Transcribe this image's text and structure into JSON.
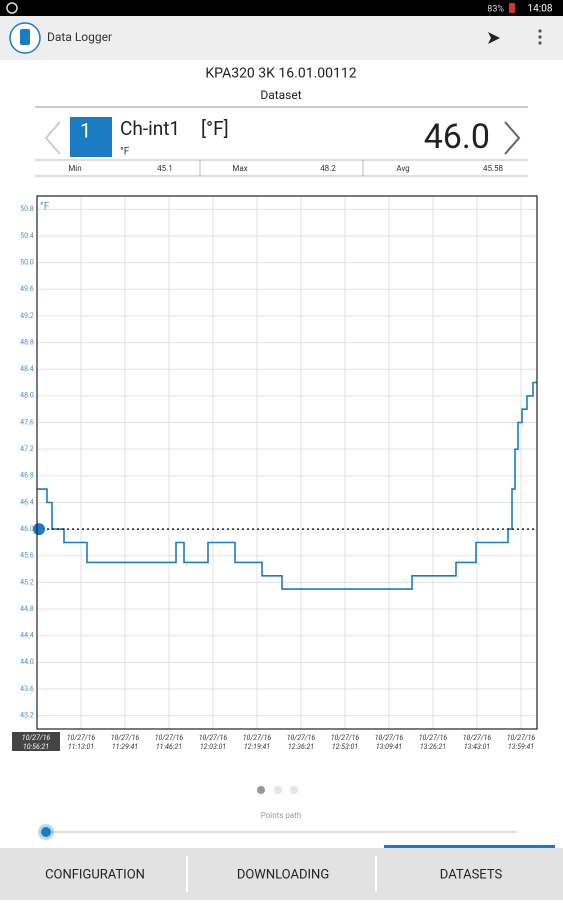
{
  "status_bar": {
    "battery": "83%",
    "time": "14:08"
  },
  "app_bar": {
    "title": "Data Logger"
  },
  "header": {
    "device": "KPA320 3K 16.01.00112",
    "subtitle": "Dataset"
  },
  "channel": {
    "number": "1",
    "name": "Ch-int1",
    "unit_bracket": "[°F]",
    "unit": "°F"
  },
  "stats": [
    {
      "label": "Min",
      "value": "45.1"
    },
    {
      "label": "Max",
      "value": "48.2"
    },
    {
      "label": "Avg",
      "value": "45.58"
    }
  ],
  "chart_data": {
    "type": "line",
    "y_unit": "°F",
    "grid": true,
    "ylim": [
      43.0,
      51.0
    ],
    "yticks": [
      43.2,
      43.6,
      {
        "value": 44,
        "label": "44.0"
      },
      44.4,
      44.8,
      45.2,
      45.6,
      {
        "value": 46,
        "label": "46.0"
      },
      46.4,
      46.8,
      47.2,
      47.6,
      {
        "value": 48,
        "label": "48.0"
      },
      48.4,
      48.8,
      49.2,
      49.6,
      {
        "value": 50,
        "label": "50.0"
      },
      50.4,
      50.8
    ],
    "xlim": [
      "10:56:21",
      "14:05:45"
    ],
    "xticks": [
      {
        "date": "10/27/16",
        "time": "10:56:21"
      },
      {
        "date": "10/27/16",
        "time": "11:13:01"
      },
      {
        "date": "10/27/16",
        "time": "11:29:41"
      },
      {
        "date": "10/27/16",
        "time": "11:46:21"
      },
      {
        "date": "10/27/16",
        "time": "12:03:01"
      },
      {
        "date": "10/27/16",
        "time": "12:19:41"
      },
      {
        "date": "10/27/16",
        "time": "12:36:21"
      },
      {
        "date": "10/27/16",
        "time": "12:53:01"
      },
      {
        "date": "10/27/16",
        "time": "13:09:41"
      },
      {
        "date": "10/27/16",
        "time": "13:26:21"
      },
      {
        "date": "10/27/16",
        "time": "13:43:01"
      },
      {
        "date": "10/27/16",
        "time": "13:59:41"
      }
    ],
    "cursor": {
      "value": 46,
      "label": "46.0"
    },
    "series": [
      {
        "color": "#1b7cc4",
        "x": [
          "10:56:21",
          "11:00:08",
          "11:02:02",
          "11:06:35",
          "11:15:17",
          "11:49:00",
          "11:52:02",
          "12:01:07",
          "12:11:21",
          "12:21:35",
          "12:29:09",
          "13:18:24",
          "13:35:04",
          "13:42:38",
          "13:54:46",
          "13:56:16",
          "13:57:25",
          "13:58:33",
          "14:00:04",
          "14:01:57",
          "14:04:14"
        ],
        "values": [
          46.6,
          46.4,
          46.0,
          45.8,
          45.5,
          45.8,
          45.5,
          45.8,
          45.5,
          45.3,
          45.1,
          45.3,
          45.5,
          45.8,
          46.0,
          46.6,
          47.2,
          47.6,
          47.8,
          48.0,
          48.2
        ]
      }
    ]
  },
  "pager": {
    "caption": "Points path"
  },
  "tabs": [
    "CONFIGURATION",
    "DOWNLOADING",
    "DATASETS"
  ]
}
